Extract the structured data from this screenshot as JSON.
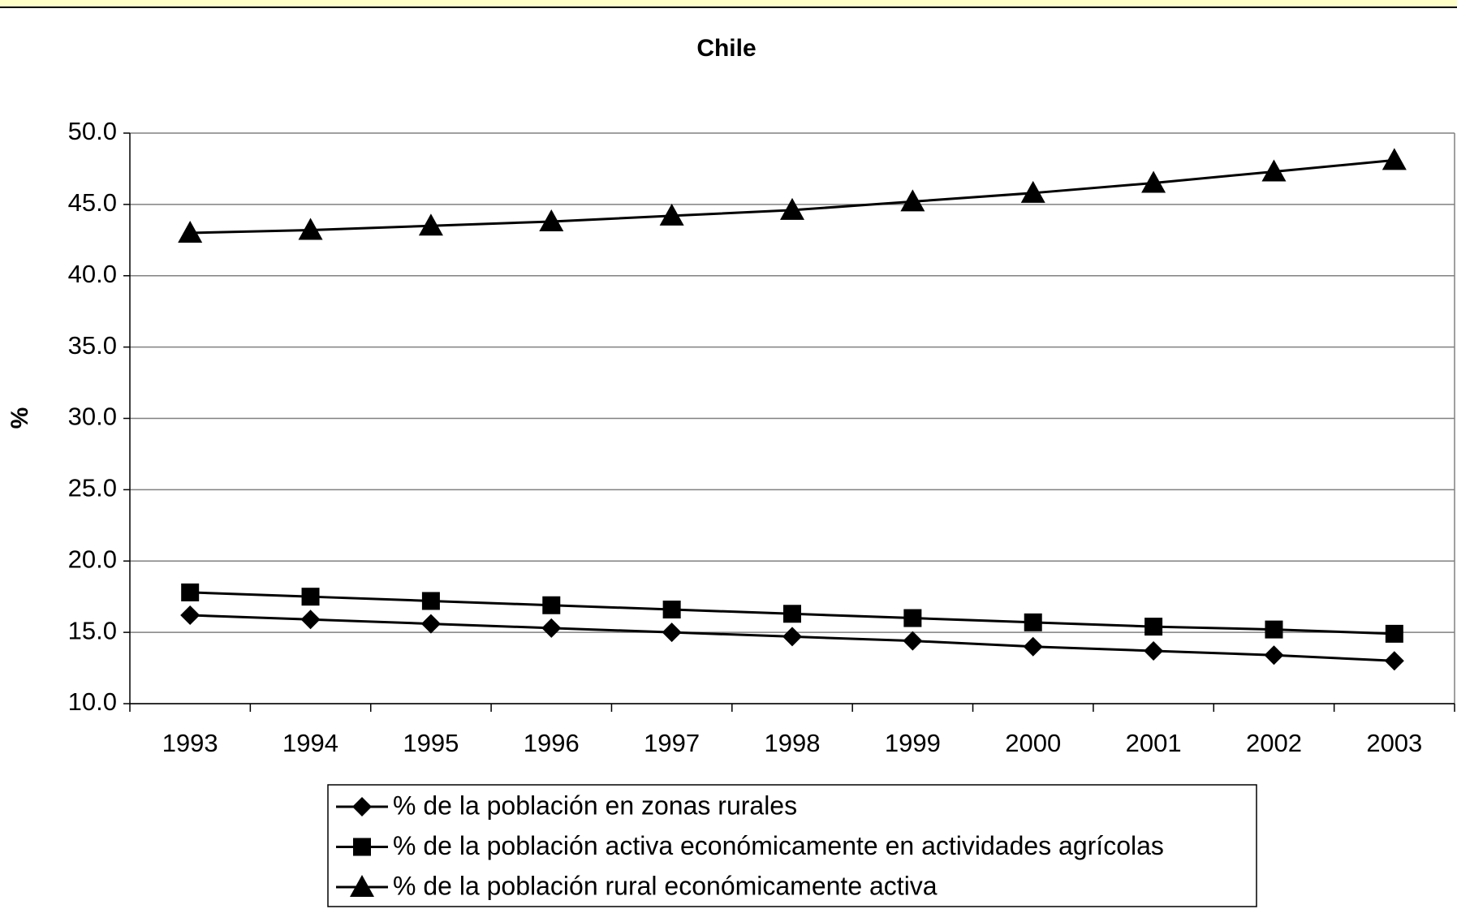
{
  "chart_data": {
    "type": "line",
    "title": "Chile",
    "ylabel": "%",
    "categories": [
      "1993",
      "1994",
      "1995",
      "1996",
      "1997",
      "1998",
      "1999",
      "2000",
      "2001",
      "2002",
      "2003"
    ],
    "series": [
      {
        "name": "% de la población en zonas rurales",
        "color": "#000000",
        "marker": "diamond",
        "values": [
          16.2,
          15.9,
          15.6,
          15.3,
          15.0,
          14.7,
          14.4,
          14.0,
          13.7,
          13.4,
          13.0
        ]
      },
      {
        "name": "% de la población activa económicamente en actividades agrícolas",
        "color": "#000000",
        "marker": "square",
        "values": [
          17.8,
          17.5,
          17.2,
          16.9,
          16.6,
          16.3,
          16.0,
          15.7,
          15.4,
          15.2,
          14.9
        ]
      },
      {
        "name": "% de la población rural económicamente activa",
        "color": "#000000",
        "marker": "triangle",
        "values": [
          43.0,
          43.2,
          43.5,
          43.8,
          44.2,
          44.6,
          45.2,
          45.8,
          46.5,
          47.3,
          48.1
        ]
      }
    ],
    "ylim": [
      10,
      50
    ],
    "yticks": [
      {
        "value": 10,
        "label": "10.0"
      },
      {
        "value": 15,
        "label": "15.0"
      },
      {
        "value": 20,
        "label": "20.0"
      },
      {
        "value": 25,
        "label": "25.0"
      },
      {
        "value": 30,
        "label": "30.0"
      },
      {
        "value": 35,
        "label": "35.0"
      },
      {
        "value": 40,
        "label": "40.0"
      },
      {
        "value": 45,
        "label": "45.0"
      },
      {
        "value": 50,
        "label": "50.0"
      }
    ],
    "grid": true,
    "legend": "bottom"
  }
}
